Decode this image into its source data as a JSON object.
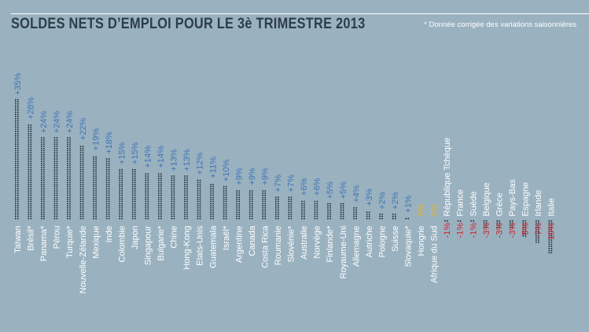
{
  "title": "SOLDES NETS D’EMPLOI POUR LE 3è TRIMESTRE 2013",
  "note": "* Donnée corrigée des variations saisonnières",
  "colors": {
    "background": "#9ab2c0",
    "text": "#ffffff",
    "positive_value": "#3f74b4",
    "zero_value": "#e9b21f",
    "negative_value": "#d0242f",
    "dots": "#1f2b33"
  },
  "chart_data": {
    "type": "bar",
    "title": "SOLDES NETS D’EMPLOI POUR LE 3è TRIMESTRE 2013",
    "xlabel": "",
    "ylabel": "",
    "categories": [
      "Taïwan",
      "Brésil*",
      "Panama*",
      "Pérou",
      "Turquie*",
      "Nouvelle-Zélande",
      "Mexique",
      "Inde",
      "Colombie",
      "Japon",
      "Singapour",
      "Bulgarie*",
      "Chine",
      "Hong-Kong",
      "Etats-Unis",
      "Guatemala",
      "Israël*",
      "Argentine",
      "Canada",
      "Costa Rica",
      "Roumanie",
      "Slovénie*",
      "Australie",
      "Norvège",
      "Finlande*",
      "Royaume-Uni",
      "Allemagne",
      "Autriche",
      "Pologne",
      "Suisse",
      "Slovaquie*",
      "Hongrie",
      "Afrique du Sud",
      "République Tchèque",
      "France",
      "Suède",
      "Belgique",
      "Grèce",
      "Pays-Bas",
      "Espagne",
      "Irlande",
      "Italie"
    ],
    "values": [
      35,
      28,
      24,
      24,
      24,
      22,
      19,
      18,
      15,
      15,
      14,
      14,
      13,
      13,
      12,
      11,
      10,
      9,
      9,
      9,
      7,
      7,
      6,
      6,
      5,
      5,
      4,
      3,
      2,
      2,
      1,
      0,
      0,
      -1,
      -1,
      -1,
      -3,
      -3,
      -3,
      -5,
      -7,
      -10
    ],
    "value_labels": [
      "+35%",
      "+28%",
      "+24%",
      "+24%",
      "+24%",
      "+22%",
      "+19%",
      "+18%",
      "+15%",
      "+15%",
      "+14%",
      "+14%",
      "+13%",
      "+13%",
      "+12%",
      "+11%",
      "+10%",
      "+9%",
      "+9%",
      "+9%",
      "+7%",
      "+7%",
      "+6%",
      "+6%",
      "+5%",
      "+5%",
      "+4%",
      "+3%",
      "+2%",
      "+2%",
      "+1%",
      "0%",
      "0%",
      "-1%",
      "-1%",
      "-1%",
      "-3%",
      "-3%",
      "-3%",
      "-5%",
      "-7%",
      "-10%"
    ]
  }
}
